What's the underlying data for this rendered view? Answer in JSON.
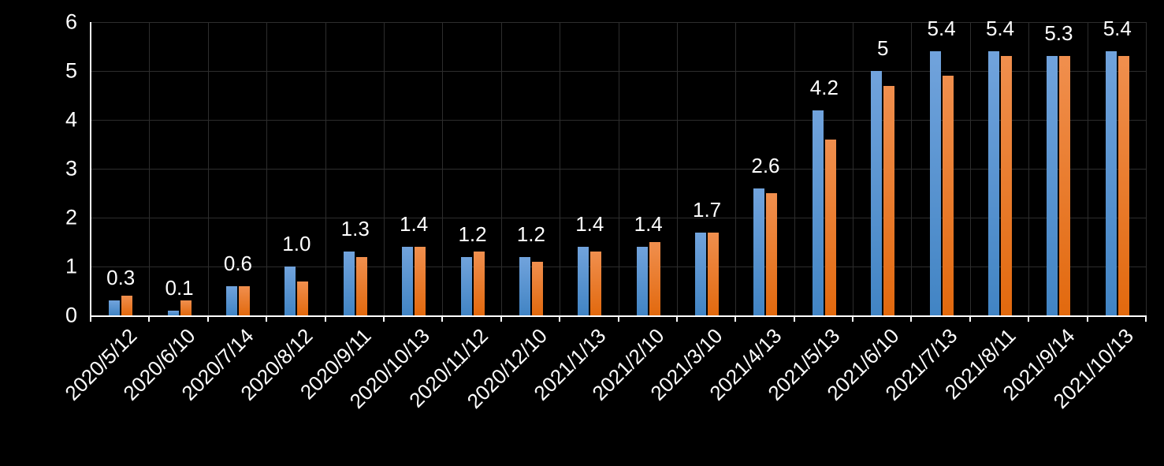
{
  "chart": {
    "background": "#000000",
    "text_color": "#ffffff",
    "axis_color": "#ffffff",
    "gridline_color": "#2d2d2d"
  },
  "chart_data": {
    "type": "bar",
    "title": "",
    "xlabel": "",
    "ylabel": "",
    "categories": [
      "2020/5/12",
      "2020/6/10",
      "2020/7/14",
      "2020/8/12",
      "2020/9/11",
      "2020/10/13",
      "2020/11/12",
      "2020/12/10",
      "2021/1/13",
      "2021/2/10",
      "2021/3/10",
      "2021/4/13",
      "2021/5/13",
      "2021/6/10",
      "2021/7/13",
      "2021/8/11",
      "2021/9/14",
      "2021/10/13"
    ],
    "series": [
      {
        "name": "blue-series",
        "color": "#5b9bd5",
        "color_top": "#71a3dc",
        "color_bottom": "#4184c4",
        "values": [
          0.3,
          0.1,
          0.6,
          1.0,
          1.3,
          1.4,
          1.2,
          1.2,
          1.4,
          1.4,
          1.7,
          2.6,
          4.2,
          5.0,
          5.4,
          5.4,
          5.3,
          5.4
        ]
      },
      {
        "name": "orange-series",
        "color": "#ed7d31",
        "color_top": "#f08f4e",
        "color_bottom": "#e2690e",
        "values": [
          0.4,
          0.3,
          0.6,
          0.7,
          1.2,
          1.4,
          1.3,
          1.1,
          1.3,
          1.5,
          1.7,
          2.5,
          3.6,
          4.7,
          4.9,
          5.3,
          5.3,
          5.3
        ]
      }
    ],
    "data_labels": [
      "0.3",
      "0.1",
      "0.6",
      "1.0",
      "1.3",
      "1.4",
      "1.2",
      "1.2",
      "1.4",
      "1.4",
      "1.7",
      "2.6",
      "4.2",
      "5",
      "5.4",
      "5.4",
      "5.3",
      "5.4"
    ],
    "data_labels_series": "blue-series",
    "ylim": [
      0,
      6
    ],
    "yticks": [
      "0",
      "1",
      "2",
      "3",
      "4",
      "5",
      "6"
    ],
    "grid": true,
    "legend": "none"
  }
}
